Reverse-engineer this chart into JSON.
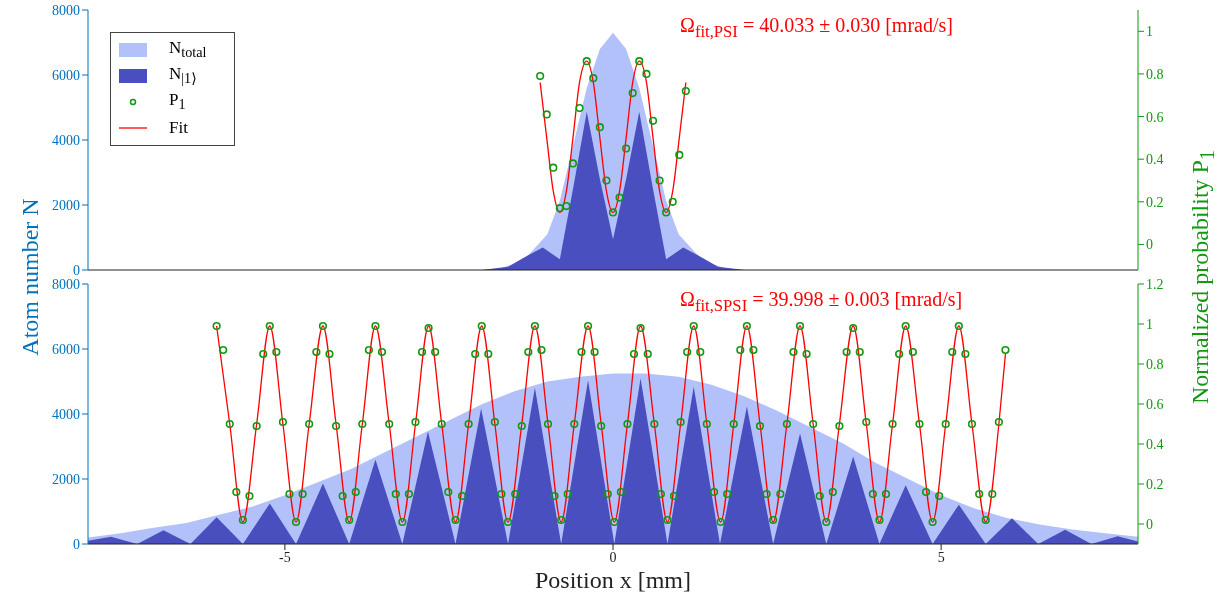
{
  "chart_data": [
    {
      "type": "area",
      "annotations": [
        "Ω$_{fit,PSI}$ = 40.033 ± 0.030 [mrad/s]"
      ],
      "xlim": [
        -8,
        8
      ],
      "xticks": [
        -5,
        0,
        5
      ],
      "ylim": [
        0,
        8000
      ],
      "yticks": [
        0,
        2000,
        4000,
        6000,
        8000
      ],
      "y2lim": [
        -0.12,
        1.1
      ],
      "y2ticks": [
        0,
        0.2,
        0.4,
        0.6,
        0.8,
        1
      ],
      "tick_labels": "y",
      "legend": "top left",
      "series": [
        {
          "name": "N$_{total}$",
          "color": "#b3c1fb",
          "x": [
            -2.0,
            -1.7,
            -1.37,
            -1.0,
            -0.81,
            -0.63,
            -0.4,
            -0.2,
            0,
            0.2,
            0.4,
            0.63,
            0.81,
            1.0,
            1.37,
            1.7,
            2.0
          ],
          "values": [
            0,
            60,
            280,
            1100,
            2130,
            3650,
            5600,
            6800,
            7300,
            6800,
            5600,
            3650,
            2130,
            1100,
            280,
            60,
            0
          ]
        },
        {
          "name": "N$_{|1⟩}$",
          "color": "#4a4fc0",
          "x": [
            -2.0,
            -1.6,
            -1.3,
            -1.07,
            -0.81,
            -0.6,
            -0.4,
            -0.2,
            0,
            0.2,
            0.4,
            0.6,
            0.81,
            1.07,
            1.3,
            1.6,
            2.0
          ],
          "values": [
            0,
            100,
            450,
            690,
            330,
            2600,
            4870,
            2800,
            950,
            2800,
            4870,
            2600,
            330,
            690,
            450,
            100,
            0
          ]
        },
        {
          "name": "P$_{1}$",
          "type": "scatter",
          "axis": "y2",
          "color": "#119911",
          "marker": "circle",
          "x": [
            -1.11,
            -1.01,
            -0.91,
            -0.81,
            -0.71,
            -0.61,
            -0.51,
            -0.4,
            -0.3,
            -0.2,
            -0.1,
            0.0,
            0.1,
            0.2,
            0.3,
            0.4,
            0.51,
            0.61,
            0.71,
            0.81,
            0.91,
            1.01,
            1.11
          ],
          "values": [
            0.79,
            0.61,
            0.36,
            0.17,
            0.18,
            0.38,
            0.64,
            0.86,
            0.78,
            0.55,
            0.3,
            0.15,
            0.22,
            0.45,
            0.71,
            0.86,
            0.8,
            0.58,
            0.3,
            0.15,
            0.2,
            0.42,
            0.72
          ]
        },
        {
          "name": "Fit",
          "type": "line",
          "axis": "y2",
          "color": "#ff0000",
          "x": [
            -1.11,
            -1.01,
            -0.91,
            -0.81,
            -0.71,
            -0.61,
            -0.51,
            -0.4,
            -0.3,
            -0.2,
            -0.1,
            0.0,
            0.1,
            0.2,
            0.3,
            0.4,
            0.51,
            0.61,
            0.71,
            0.81,
            0.91,
            1.01,
            1.11
          ],
          "values": [
            0.76,
            0.5,
            0.25,
            0.15,
            0.25,
            0.5,
            0.76,
            0.86,
            0.76,
            0.5,
            0.25,
            0.15,
            0.25,
            0.5,
            0.76,
            0.86,
            0.76,
            0.5,
            0.25,
            0.15,
            0.25,
            0.5,
            0.76
          ]
        }
      ]
    },
    {
      "type": "area",
      "xlabel": "Position x [mm]",
      "ylabel": "Atom number N",
      "y2label": "Normalized probability P$_{1}$",
      "annotations": [
        "Ω$_{fit,SPSI}$ = 39.998 ± 0.003 [mrad/s]"
      ],
      "xlim": [
        -8,
        8
      ],
      "xticks": [
        -5,
        0,
        5
      ],
      "ylim": [
        0,
        8000
      ],
      "yticks": [
        0,
        2000,
        4000,
        6000,
        8000
      ],
      "y2lim": [
        -0.1,
        1.2
      ],
      "y2ticks": [
        0,
        0.2,
        0.4,
        0.6,
        0.8,
        1,
        1.2
      ],
      "series": [
        {
          "color": "#b3c1fb",
          "x": [
            -8,
            -7.5,
            -7,
            -6.5,
            -6,
            -5.5,
            -5,
            -4.5,
            -4,
            -3.5,
            -3,
            -2.5,
            -2,
            -1.5,
            -1,
            -0.5,
            0,
            0.5,
            1,
            1.5,
            2,
            2.5,
            3,
            3.5,
            4,
            4.5,
            5,
            5.5,
            6,
            6.5,
            7,
            7.5,
            8
          ],
          "values": [
            200,
            330,
            500,
            650,
            900,
            1150,
            1500,
            1900,
            2300,
            2800,
            3300,
            3800,
            4300,
            4700,
            5000,
            5150,
            5250,
            5250,
            5150,
            4900,
            4550,
            4100,
            3600,
            3100,
            2500,
            2000,
            1500,
            1100,
            800,
            600,
            450,
            330,
            220
          ]
        },
        {
          "color": "#4a4fc0",
          "x": [
            -8.0,
            -7.65,
            -7.25,
            -6.85,
            -6.44,
            -6.04,
            -5.64,
            -5.23,
            -4.83,
            -4.42,
            -4.02,
            -3.62,
            -3.21,
            -2.82,
            -2.4,
            -2.01,
            -1.6,
            -1.19,
            -0.79,
            -0.38,
            0.02,
            0.42,
            0.83,
            1.23,
            1.63,
            2.04,
            2.44,
            2.85,
            3.25,
            3.66,
            4.06,
            4.46,
            4.87,
            5.27,
            5.68,
            6.08,
            6.48,
            6.89,
            7.29,
            7.69,
            8.0
          ],
          "values": [
            100,
            220,
            0,
            420,
            0,
            820,
            0,
            1250,
            0,
            1860,
            0,
            2600,
            0,
            3460,
            0,
            4170,
            0,
            4810,
            0,
            5040,
            0,
            5100,
            0,
            4840,
            0,
            4230,
            0,
            3400,
            0,
            2690,
            0,
            1810,
            0,
            1210,
            0,
            790,
            0,
            440,
            0,
            240,
            80
          ]
        },
        {
          "type": "scatter",
          "axis": "y2",
          "color": "#119911",
          "marker": "circle",
          "x": [
            -6.04,
            -5.94,
            -5.84,
            -5.74,
            -5.64,
            -5.54,
            -5.43,
            -5.33,
            -5.23,
            -5.13,
            -5.03,
            -4.93,
            -4.83,
            -4.73,
            -4.63,
            -4.52,
            -4.42,
            -4.32,
            -4.22,
            -4.12,
            -4.02,
            -3.92,
            -3.82,
            -3.72,
            -3.62,
            -3.52,
            -3.41,
            -3.31,
            -3.21,
            -3.11,
            -3.01,
            -2.91,
            -2.81,
            -2.71,
            -2.61,
            -2.51,
            -2.4,
            -2.3,
            -2.2,
            -2.1,
            -2.0,
            -1.9,
            -1.8,
            -1.7,
            -1.6,
            -1.49,
            -1.39,
            -1.29,
            -1.19,
            -1.09,
            -0.99,
            -0.89,
            -0.79,
            -0.69,
            -0.59,
            -0.48,
            -0.38,
            -0.28,
            -0.18,
            -0.08,
            0.02,
            0.12,
            0.22,
            0.32,
            0.42,
            0.53,
            0.63,
            0.73,
            0.83,
            0.93,
            1.03,
            1.13,
            1.23,
            1.33,
            1.43,
            1.54,
            1.64,
            1.74,
            1.84,
            1.94,
            2.04,
            2.14,
            2.24,
            2.34,
            2.44,
            2.55,
            2.65,
            2.75,
            2.85,
            2.95,
            3.05,
            3.15,
            3.25,
            3.35,
            3.45,
            3.56,
            3.66,
            3.76,
            3.86,
            3.96,
            4.06,
            4.16,
            4.26,
            4.36,
            4.46,
            4.57,
            4.67,
            4.77,
            4.87,
            4.97,
            5.07,
            5.17,
            5.27,
            5.37,
            5.47,
            5.58,
            5.68,
            5.78,
            5.88,
            5.98
          ],
          "values": [
            0.99,
            0.87,
            0.5,
            0.16,
            0.02,
            0.14,
            0.49,
            0.85,
            0.99,
            0.86,
            0.51,
            0.15,
            0.01,
            0.15,
            0.5,
            0.86,
            0.99,
            0.85,
            0.49,
            0.14,
            0.02,
            0.16,
            0.5,
            0.87,
            0.99,
            0.86,
            0.5,
            0.15,
            0.01,
            0.15,
            0.51,
            0.86,
            0.98,
            0.86,
            0.5,
            0.16,
            0.02,
            0.14,
            0.5,
            0.85,
            0.99,
            0.85,
            0.51,
            0.15,
            0.01,
            0.15,
            0.49,
            0.86,
            0.99,
            0.87,
            0.5,
            0.14,
            0.02,
            0.15,
            0.5,
            0.86,
            0.99,
            0.86,
            0.49,
            0.15,
            0.01,
            0.16,
            0.5,
            0.85,
            0.98,
            0.85,
            0.5,
            0.15,
            0.02,
            0.14,
            0.51,
            0.86,
            0.99,
            0.86,
            0.5,
            0.16,
            0.01,
            0.15,
            0.5,
            0.87,
            0.99,
            0.87,
            0.49,
            0.15,
            0.02,
            0.15,
            0.5,
            0.86,
            0.99,
            0.85,
            0.5,
            0.14,
            0.01,
            0.16,
            0.49,
            0.86,
            0.98,
            0.86,
            0.51,
            0.15,
            0.02,
            0.15,
            0.5,
            0.85,
            0.99,
            0.86,
            0.5,
            0.16,
            0.01,
            0.14,
            0.5,
            0.86,
            0.99,
            0.85,
            0.5,
            0.15,
            0.02,
            0.15,
            0.51,
            0.87
          ]
        },
        {
          "type": "line",
          "axis": "y2",
          "color": "#ff0000",
          "x": [
            -6.04,
            -5.84,
            -5.64,
            -5.43,
            -5.23,
            -5.03,
            -4.83,
            -4.63,
            -4.42,
            -4.22,
            -4.02,
            -3.82,
            -3.62,
            -3.41,
            -3.21,
            -3.01,
            -2.81,
            -2.61,
            -2.4,
            -2.2,
            -2.0,
            -1.8,
            -1.6,
            -1.39,
            -1.19,
            -0.99,
            -0.79,
            -0.59,
            -0.38,
            -0.18,
            0.02,
            0.22,
            0.42,
            0.63,
            0.83,
            1.03,
            1.23,
            1.43,
            1.64,
            1.84,
            2.04,
            2.24,
            2.44,
            2.65,
            2.85,
            3.05,
            3.25,
            3.45,
            3.66,
            3.86,
            4.06,
            4.26,
            4.46,
            4.67,
            4.87,
            5.07,
            5.27,
            5.47,
            5.68,
            5.88,
            5.98
          ],
          "values": [
            0.99,
            0.5,
            0.01,
            0.5,
            0.99,
            0.5,
            0.01,
            0.5,
            0.99,
            0.5,
            0.01,
            0.5,
            0.99,
            0.5,
            0.01,
            0.5,
            0.99,
            0.5,
            0.01,
            0.5,
            0.99,
            0.5,
            0.01,
            0.5,
            0.99,
            0.5,
            0.01,
            0.5,
            0.99,
            0.5,
            0.01,
            0.5,
            0.99,
            0.5,
            0.01,
            0.5,
            0.99,
            0.5,
            0.01,
            0.5,
            0.99,
            0.5,
            0.01,
            0.5,
            0.99,
            0.5,
            0.01,
            0.5,
            0.99,
            0.5,
            0.01,
            0.5,
            0.99,
            0.5,
            0.01,
            0.5,
            0.99,
            0.5,
            0.01,
            0.5,
            0.85
          ]
        }
      ]
    }
  ]
}
